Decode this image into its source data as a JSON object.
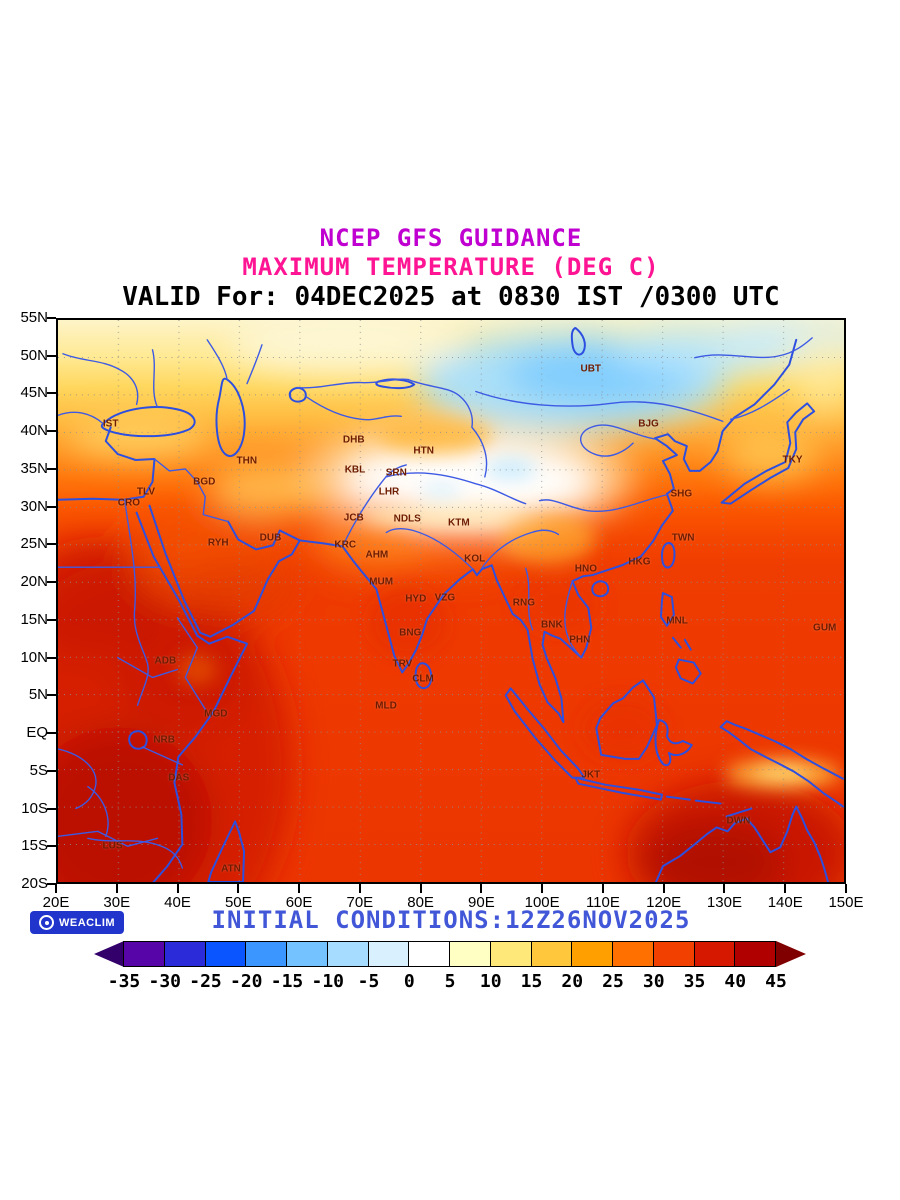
{
  "titles": {
    "line1": "NCEP GFS GUIDANCE",
    "line2": "MAXIMUM TEMPERATURE (DEG C)",
    "line3": "VALID For: 04DEC2025 at 0830 IST /0300 UTC"
  },
  "colors": {
    "title1": "#c000d0",
    "title2": "#ff1493",
    "valid_text": "#000000",
    "initial_text": "#4157d8",
    "badge_bg": "#2135cc",
    "coastline": "#2d4fe0"
  },
  "map": {
    "extent": {
      "lon_min": 20,
      "lon_max": 150,
      "lat_min": -20,
      "lat_max": 55
    },
    "lat_labels": [
      "55N",
      "50N",
      "45N",
      "40N",
      "35N",
      "30N",
      "25N",
      "20N",
      "15N",
      "10N",
      "5N",
      "EQ",
      "5S",
      "10S",
      "15S",
      "20S"
    ],
    "lon_labels": [
      "20E",
      "30E",
      "40E",
      "50E",
      "60E",
      "70E",
      "80E",
      "90E",
      "100E",
      "110E",
      "120E",
      "130E",
      "140E",
      "150E"
    ],
    "cities": [
      {
        "label": "IST",
        "lon": 29.0,
        "lat": 41.0
      },
      {
        "label": "THN",
        "lon": 51.4,
        "lat": 36.0
      },
      {
        "label": "BGD",
        "lon": 44.4,
        "lat": 33.3
      },
      {
        "label": "TLV",
        "lon": 34.8,
        "lat": 32.0
      },
      {
        "label": "CRO",
        "lon": 32.0,
        "lat": 30.5
      },
      {
        "label": "RYH",
        "lon": 46.7,
        "lat": 25.2
      },
      {
        "label": "DUB",
        "lon": 55.3,
        "lat": 25.8
      },
      {
        "label": "DHB",
        "lon": 69.0,
        "lat": 38.9
      },
      {
        "label": "KBL",
        "lon": 69.2,
        "lat": 34.8
      },
      {
        "label": "SRN",
        "lon": 76.0,
        "lat": 34.5
      },
      {
        "label": "LHR",
        "lon": 74.8,
        "lat": 31.9
      },
      {
        "label": "JCB",
        "lon": 69.0,
        "lat": 28.5
      },
      {
        "label": "NDLS",
        "lon": 77.8,
        "lat": 28.4
      },
      {
        "label": "KTM",
        "lon": 86.3,
        "lat": 27.8
      },
      {
        "label": "KRC",
        "lon": 67.6,
        "lat": 24.9
      },
      {
        "label": "AHM",
        "lon": 72.8,
        "lat": 23.6
      },
      {
        "label": "KOL",
        "lon": 88.9,
        "lat": 23.0
      },
      {
        "label": "MUM",
        "lon": 73.5,
        "lat": 20.0
      },
      {
        "label": "HYD",
        "lon": 79.2,
        "lat": 17.8
      },
      {
        "label": "VZG",
        "lon": 84.0,
        "lat": 17.9
      },
      {
        "label": "RNG",
        "lon": 97.0,
        "lat": 17.2
      },
      {
        "label": "BNK",
        "lon": 101.6,
        "lat": 14.3
      },
      {
        "label": "PHN",
        "lon": 106.2,
        "lat": 12.3
      },
      {
        "label": "BNG",
        "lon": 78.3,
        "lat": 13.2
      },
      {
        "label": "MNL",
        "lon": 122.2,
        "lat": 14.9
      },
      {
        "label": "GUM",
        "lon": 146.5,
        "lat": 13.9
      },
      {
        "label": "TRV",
        "lon": 77.0,
        "lat": 9.2
      },
      {
        "label": "CLM",
        "lon": 80.4,
        "lat": 7.2
      },
      {
        "label": "MLD",
        "lon": 74.3,
        "lat": 3.6
      },
      {
        "label": "ADB",
        "lon": 38.0,
        "lat": 9.5
      },
      {
        "label": "MGD",
        "lon": 46.3,
        "lat": 2.5
      },
      {
        "label": "NRB",
        "lon": 37.8,
        "lat": -0.9
      },
      {
        "label": "DAS",
        "lon": 40.2,
        "lat": -6.0
      },
      {
        "label": "JKT",
        "lon": 108.0,
        "lat": -5.6
      },
      {
        "label": "LUS",
        "lon": 29.3,
        "lat": -14.9
      },
      {
        "label": "ATN",
        "lon": 48.8,
        "lat": -18.0
      },
      {
        "label": "DWN",
        "lon": 132.3,
        "lat": -11.6
      },
      {
        "label": "UBT",
        "lon": 108.0,
        "lat": 48.2
      },
      {
        "label": "BJG",
        "lon": 117.5,
        "lat": 41.0
      },
      {
        "label": "SHG",
        "lon": 122.9,
        "lat": 31.7
      },
      {
        "label": "TWN",
        "lon": 123.2,
        "lat": 25.8
      },
      {
        "label": "HKG",
        "lon": 116.0,
        "lat": 22.7
      },
      {
        "label": "HNO",
        "lon": 107.2,
        "lat": 21.8
      },
      {
        "label": "TKY",
        "lon": 141.2,
        "lat": 36.2
      },
      {
        "label": "HTN",
        "lon": 80.5,
        "lat": 37.4
      }
    ]
  },
  "footer": {
    "badge_label": "WEACLIM",
    "initial_conditions": "INITIAL CONDITIONS:12Z26NOV2025"
  },
  "colorbar": {
    "tick_labels": [
      "-35",
      "-30",
      "-25",
      "-20",
      "-15",
      "-10",
      "-5",
      "0",
      "5",
      "10",
      "15",
      "20",
      "25",
      "30",
      "35",
      "40",
      "45"
    ],
    "left_arrow_color": "#33006b",
    "right_arrow_color": "#800000",
    "cell_colors": [
      "#5705a8",
      "#2b2bd9",
      "#0a55ff",
      "#3c96ff",
      "#74c2ff",
      "#a6dcff",
      "#d9f1ff",
      "#ffffff",
      "#ffffc4",
      "#ffe87a",
      "#ffc83c",
      "#ffa000",
      "#ff7000",
      "#f24000",
      "#d61800",
      "#b00000"
    ]
  }
}
